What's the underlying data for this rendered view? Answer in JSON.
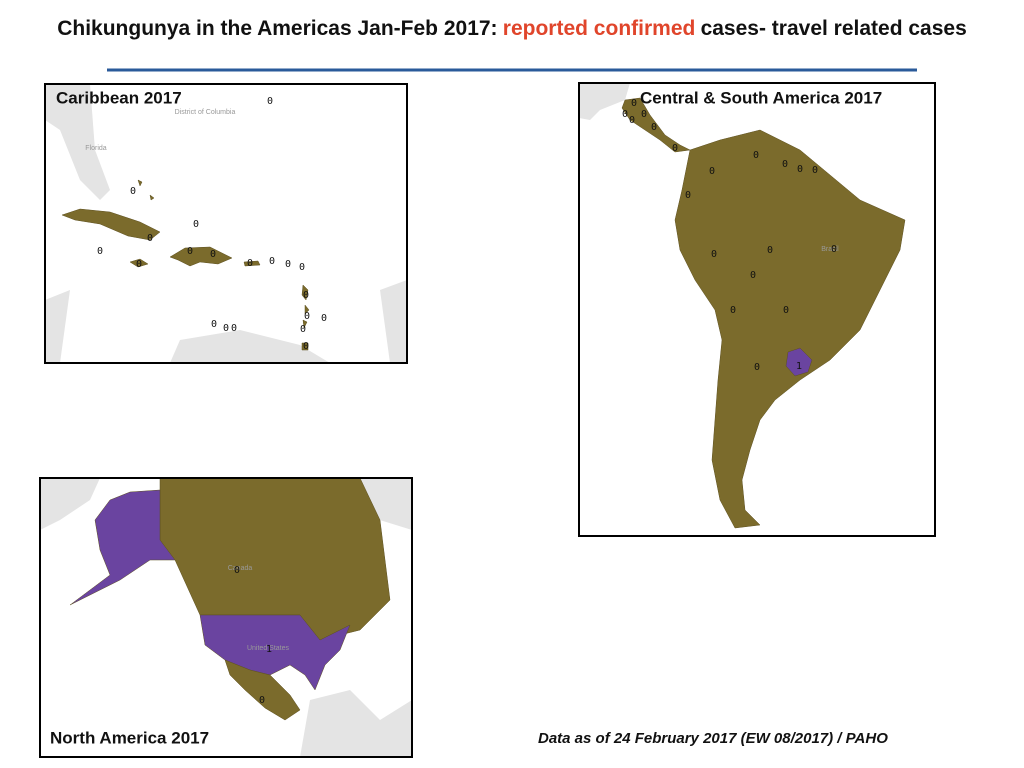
{
  "title": {
    "lead": "Chikungunya in the Americas Jan-Feb 2017:",
    "highlight": "reported confirmed",
    "tail": "cases- travel related cases"
  },
  "fill_colors": [
    "#7b6b2c",
    "#6a44a0"
  ],
  "maps": {
    "caribbean": {
      "title": "Caribbean 2017",
      "place_labels": [
        "District of Columbia",
        "Florida"
      ],
      "labels": [
        0,
        0,
        0,
        0,
        0,
        0,
        0,
        0,
        0,
        0,
        0,
        0,
        0,
        0,
        0,
        0,
        0,
        0,
        0,
        0
      ]
    },
    "central_south": {
      "title": "Central & South America  2017",
      "place_labels": [
        "Brazil"
      ],
      "labels": [
        0,
        0,
        0,
        0,
        0,
        0,
        0,
        0,
        0,
        0,
        0,
        0,
        0,
        0,
        0,
        0,
        0,
        0,
        0,
        1
      ]
    },
    "north_america": {
      "title": "North America  2017",
      "place_labels": [
        "Canada",
        "United States"
      ],
      "labels": [
        0,
        1,
        0
      ]
    }
  },
  "footer": "Data as of 24 February 2017 (EW 08/2017) / PAHO"
}
